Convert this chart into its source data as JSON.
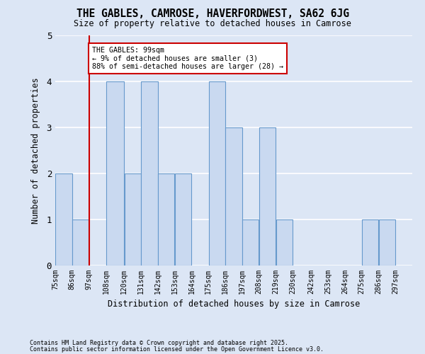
{
  "title": "THE GABLES, CAMROSE, HAVERFORDWEST, SA62 6JG",
  "subtitle": "Size of property relative to detached houses in Camrose",
  "xlabel": "Distribution of detached houses by size in Camrose",
  "ylabel": "Number of detached properties",
  "footer1": "Contains HM Land Registry data © Crown copyright and database right 2025.",
  "footer2": "Contains public sector information licensed under the Open Government Licence v3.0.",
  "annotation_title": "THE GABLES: 99sqm",
  "annotation_line1": "← 9% of detached houses are smaller (3)",
  "annotation_line2": "88% of semi-detached houses are larger (28) →",
  "property_sqm": 99,
  "bins": [
    75,
    86,
    97,
    108,
    120,
    131,
    142,
    153,
    164,
    175,
    186,
    197,
    208,
    219,
    230,
    242,
    253,
    264,
    275,
    286,
    297
  ],
  "counts": [
    2,
    1,
    0,
    4,
    2,
    4,
    2,
    2,
    0,
    4,
    3,
    1,
    3,
    1,
    0,
    0,
    0,
    0,
    1,
    1,
    0
  ],
  "bar_color": "#c9d9f0",
  "bar_edge_color": "#6699cc",
  "vline_color": "#cc0000",
  "vline_x": 97,
  "annotation_box_color": "#ffffff",
  "annotation_box_edge": "#cc0000",
  "background_color": "#dce6f5",
  "plot_background": "#dce6f5",
  "grid_color": "#ffffff",
  "ylim": [
    0,
    5
  ],
  "yticks": [
    0,
    1,
    2,
    3,
    4,
    5
  ]
}
